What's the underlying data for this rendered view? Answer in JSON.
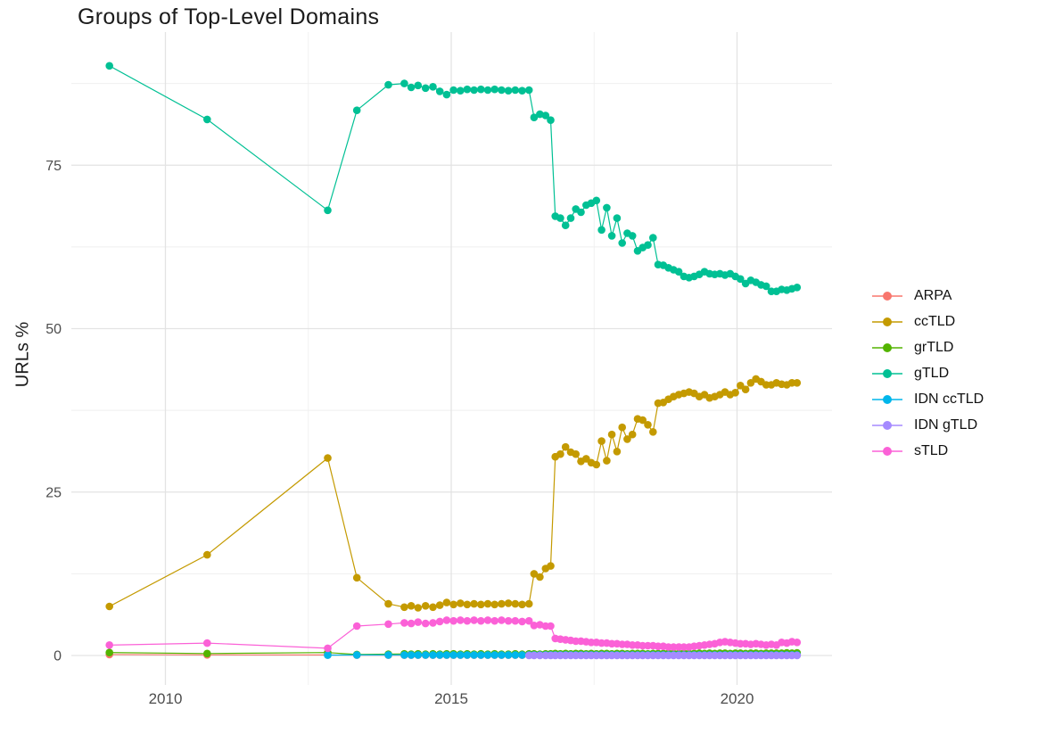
{
  "chart_data": {
    "type": "scatter",
    "title": "Groups of Top-Level Domains",
    "xlabel": "",
    "ylabel": "URLs %",
    "x_unit": "decimal year of crawl snapshot",
    "xlim": [
      2008.4,
      2021.7
    ],
    "ylim": [
      -4.5,
      94.7
    ],
    "x_major_ticks": [
      2010,
      2015,
      2020
    ],
    "y_major_ticks": [
      0,
      25,
      50,
      75
    ],
    "x_minor_gridlines": [
      2012.5,
      2017.5
    ],
    "y_minor_gridlines": [
      12.5,
      37.5,
      62.5,
      87.5
    ],
    "grid": true,
    "legend_position": "right",
    "x": [
      2009.02,
      2010.73,
      2012.84,
      2013.35,
      2013.9,
      2014.18,
      2014.3,
      2014.42,
      2014.55,
      2014.68,
      2014.8,
      2014.92,
      2015.04,
      2015.16,
      2015.28,
      2015.4,
      2015.52,
      2015.64,
      2015.76,
      2015.88,
      2016.0,
      2016.12,
      2016.24,
      2016.36,
      2016.45,
      2016.55,
      2016.65,
      2016.74,
      2016.82,
      2016.91,
      2017.0,
      2017.09,
      2017.18,
      2017.27,
      2017.36,
      2017.45,
      2017.54,
      2017.63,
      2017.72,
      2017.81,
      2017.9,
      2017.99,
      2018.08,
      2018.17,
      2018.26,
      2018.35,
      2018.44,
      2018.53,
      2018.62,
      2018.71,
      2018.8,
      2018.89,
      2018.98,
      2019.07,
      2019.16,
      2019.25,
      2019.34,
      2019.43,
      2019.52,
      2019.61,
      2019.7,
      2019.79,
      2019.88,
      2019.97,
      2020.06,
      2020.15,
      2020.24,
      2020.33,
      2020.42,
      2020.51,
      2020.6,
      2020.69,
      2020.78,
      2020.87,
      2020.96,
      2021.05
    ],
    "series": [
      {
        "name": "ARPA",
        "color": "#F8766D",
        "x_start_index": 0,
        "y": [
          0.15,
          0.1,
          0.08,
          0.05,
          0.05,
          0.05,
          0.05,
          0.05,
          0.05,
          0.05,
          0.05,
          0.05,
          0.05,
          0.05,
          0.05,
          0.05,
          0.05,
          0.05,
          0.05,
          0.05,
          0.05,
          0.05,
          0.05,
          0.05,
          0.05,
          0.05,
          0.05,
          0.05,
          0.05,
          0.05,
          0.05,
          0.05,
          0.05,
          0.05,
          0.05,
          0.05,
          0.05,
          0.05,
          0.05,
          0.05,
          0.05,
          0.05,
          0.05,
          0.05,
          0.05,
          0.05,
          0.05,
          0.05,
          0.05,
          0.05,
          0.05,
          0.05,
          0.05,
          0.05,
          0.05,
          0.05,
          0.05,
          0.05,
          0.05,
          0.05,
          0.05,
          0.05,
          0.05,
          0.05,
          0.05,
          0.05,
          0.05,
          0.05,
          0.05,
          0.05,
          0.05,
          0.05,
          0.05,
          0.05,
          0.05,
          0.05
        ]
      },
      {
        "name": "ccTLD",
        "color": "#C49A00",
        "x_start_index": 0,
        "y": [
          7.5,
          15.4,
          30.2,
          11.9,
          7.9,
          7.4,
          7.6,
          7.3,
          7.6,
          7.4,
          7.7,
          8.1,
          7.8,
          8.0,
          7.8,
          7.9,
          7.8,
          7.9,
          7.8,
          7.9,
          8.0,
          7.9,
          7.8,
          7.9,
          12.5,
          12.0,
          13.3,
          13.7,
          30.4,
          30.8,
          31.9,
          31.1,
          30.8,
          29.7,
          30.1,
          29.5,
          29.2,
          32.8,
          29.8,
          33.8,
          31.2,
          34.9,
          33.1,
          33.8,
          36.2,
          36.0,
          35.3,
          34.2,
          38.6,
          38.7,
          39.2,
          39.6,
          39.9,
          40.1,
          40.3,
          40.1,
          39.6,
          39.9,
          39.4,
          39.6,
          39.9,
          40.3,
          39.9,
          40.2,
          41.3,
          40.7,
          41.7,
          42.3,
          41.9,
          41.4,
          41.4,
          41.7,
          41.5,
          41.4,
          41.7,
          41.7
        ]
      },
      {
        "name": "grTLD",
        "color": "#53B400",
        "x_start_index": 0,
        "y": [
          0.45,
          0.3,
          0.45,
          0.15,
          0.2,
          0.25,
          0.2,
          0.25,
          0.2,
          0.25,
          0.2,
          0.25,
          0.25,
          0.2,
          0.25,
          0.2,
          0.25,
          0.2,
          0.25,
          0.2,
          0.2,
          0.25,
          0.2,
          0.25,
          0.25,
          0.2,
          0.25,
          0.25,
          0.3,
          0.25,
          0.3,
          0.25,
          0.3,
          0.3,
          0.25,
          0.3,
          0.25,
          0.3,
          0.3,
          0.25,
          0.3,
          0.3,
          0.25,
          0.3,
          0.3,
          0.3,
          0.25,
          0.3,
          0.3,
          0.3,
          0.35,
          0.3,
          0.3,
          0.35,
          0.3,
          0.3,
          0.35,
          0.3,
          0.35,
          0.3,
          0.35,
          0.35,
          0.3,
          0.35,
          0.35,
          0.3,
          0.35,
          0.35,
          0.3,
          0.35,
          0.35,
          0.35,
          0.35,
          0.4,
          0.35,
          0.4
        ]
      },
      {
        "name": "gTLD",
        "color": "#00C094",
        "x_start_index": 0,
        "y": [
          90.2,
          82.0,
          68.1,
          83.4,
          87.3,
          87.5,
          86.9,
          87.2,
          86.8,
          87.0,
          86.3,
          85.8,
          86.5,
          86.4,
          86.6,
          86.5,
          86.6,
          86.5,
          86.6,
          86.5,
          86.4,
          86.5,
          86.4,
          86.5,
          82.3,
          82.8,
          82.6,
          81.9,
          67.2,
          66.9,
          65.8,
          66.9,
          68.3,
          67.8,
          68.9,
          69.2,
          69.6,
          65.1,
          68.5,
          64.2,
          66.9,
          63.1,
          64.6,
          64.2,
          61.9,
          62.4,
          62.8,
          63.9,
          59.8,
          59.7,
          59.3,
          59.0,
          58.7,
          58.0,
          57.8,
          58.0,
          58.3,
          58.7,
          58.4,
          58.3,
          58.4,
          58.2,
          58.4,
          58.0,
          57.6,
          56.9,
          57.4,
          57.1,
          56.7,
          56.5,
          55.7,
          55.7,
          56.0,
          55.9,
          56.1,
          56.3
        ]
      },
      {
        "name": "IDN ccTLD",
        "color": "#00B6EB",
        "x_start_index": 2,
        "y": [
          0.05,
          0.08,
          0.08,
          0.08,
          0.08,
          0.08,
          0.08,
          0.08,
          0.08,
          0.08,
          0.08,
          0.08,
          0.08,
          0.08,
          0.08,
          0.08,
          0.08,
          0.08,
          0.08,
          0.08,
          0.08,
          0.08,
          0.08,
          0.08,
          0.08,
          0.08,
          0.08,
          0.08,
          0.08,
          0.08,
          0.08,
          0.08,
          0.08,
          0.08,
          0.08,
          0.08,
          0.08,
          0.08,
          0.08,
          0.08,
          0.08,
          0.08,
          0.08,
          0.08,
          0.08,
          0.08,
          0.08,
          0.08,
          0.08,
          0.08,
          0.08,
          0.08,
          0.08,
          0.08,
          0.08,
          0.08,
          0.08,
          0.08,
          0.08,
          0.08,
          0.08,
          0.08,
          0.08,
          0.08,
          0.08,
          0.08,
          0.08,
          0.08,
          0.08,
          0.08,
          0.08,
          0.08,
          0.08,
          0.08
        ]
      },
      {
        "name": "IDN gTLD",
        "color": "#A58AFF",
        "x_start_index": 23,
        "y": [
          0.02,
          0.02,
          0.02,
          0.02,
          0.02,
          0.02,
          0.02,
          0.02,
          0.02,
          0.02,
          0.02,
          0.02,
          0.02,
          0.02,
          0.02,
          0.02,
          0.02,
          0.02,
          0.02,
          0.02,
          0.02,
          0.02,
          0.02,
          0.02,
          0.02,
          0.02,
          0.02,
          0.02,
          0.02,
          0.02,
          0.02,
          0.02,
          0.02,
          0.02,
          0.02,
          0.02,
          0.02,
          0.02,
          0.02,
          0.02,
          0.02,
          0.02,
          0.02,
          0.02,
          0.02,
          0.02,
          0.02,
          0.02,
          0.02,
          0.02,
          0.02,
          0.02,
          0.02
        ]
      },
      {
        "name": "sTLD",
        "color": "#FB61D7",
        "x_start_index": 0,
        "y": [
          1.6,
          1.9,
          1.1,
          4.5,
          4.8,
          5.0,
          4.9,
          5.1,
          4.9,
          5.0,
          5.2,
          5.4,
          5.3,
          5.4,
          5.3,
          5.4,
          5.3,
          5.4,
          5.3,
          5.4,
          5.3,
          5.3,
          5.2,
          5.3,
          4.6,
          4.7,
          4.5,
          4.5,
          2.6,
          2.5,
          2.4,
          2.3,
          2.2,
          2.2,
          2.1,
          2.0,
          2.0,
          1.9,
          1.9,
          1.8,
          1.8,
          1.7,
          1.7,
          1.6,
          1.6,
          1.5,
          1.5,
          1.5,
          1.4,
          1.4,
          1.3,
          1.3,
          1.3,
          1.3,
          1.3,
          1.4,
          1.5,
          1.6,
          1.7,
          1.8,
          2.0,
          2.1,
          2.0,
          1.9,
          1.8,
          1.8,
          1.7,
          1.8,
          1.7,
          1.6,
          1.7,
          1.6,
          2.0,
          1.9,
          2.1,
          2.0
        ]
      }
    ]
  },
  "style": {
    "background": "#ffffff",
    "gridline_major_color": "#e3e3e3",
    "gridline_minor_color": "#efefef",
    "tick_label_color": "#4d4d4d",
    "text_color": "#1b1b1b"
  }
}
